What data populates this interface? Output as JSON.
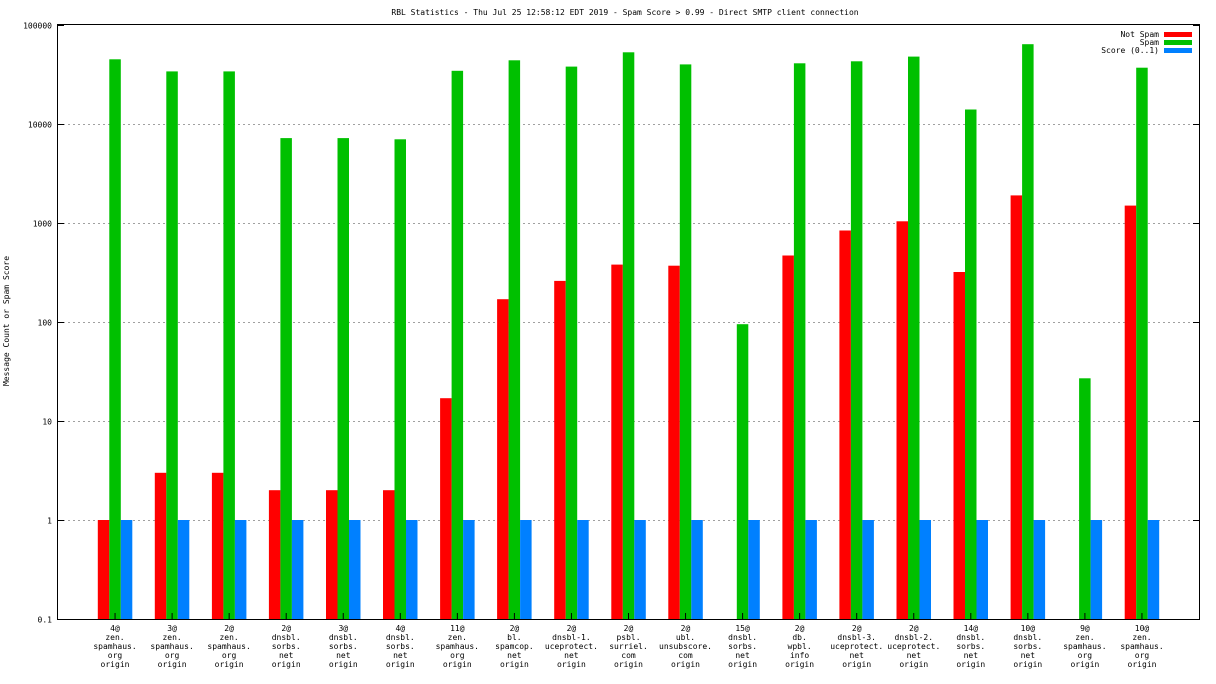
{
  "chart_data": {
    "type": "bar",
    "title": "RBL Statistics - Thu Jul 25 12:58:12 EDT 2019 - Spam Score > 0.99 - Direct SMTP client connection",
    "xlabel": "",
    "ylabel": "Message Count or Spam Score",
    "yscale": "log",
    "ylim": [
      0.1,
      100000
    ],
    "yticks": [
      "0.1",
      "1",
      "10",
      "100",
      "1000",
      "10000",
      "100000"
    ],
    "grid": true,
    "legend_position": "top-right",
    "categories": [
      [
        "4@",
        "zen.",
        "spamhaus.",
        "org",
        "origin"
      ],
      [
        "3@",
        "zen.",
        "spamhaus.",
        "org",
        "origin"
      ],
      [
        "2@",
        "zen.",
        "spamhaus.",
        "org",
        "origin"
      ],
      [
        "2@",
        "dnsbl.",
        "sorbs.",
        "net",
        "origin"
      ],
      [
        "3@",
        "dnsbl.",
        "sorbs.",
        "net",
        "origin"
      ],
      [
        "4@",
        "dnsbl.",
        "sorbs.",
        "net",
        "origin"
      ],
      [
        "11@",
        "zen.",
        "spamhaus.",
        "org",
        "origin"
      ],
      [
        "2@",
        "bl.",
        "spamcop.",
        "net",
        "origin"
      ],
      [
        "2@",
        "dnsbl-1.",
        "uceprotect.",
        "net",
        "origin"
      ],
      [
        "2@",
        "psbl.",
        "surriel.",
        "com",
        "origin"
      ],
      [
        "2@",
        "ubl.",
        "unsubscore.",
        "com",
        "origin"
      ],
      [
        "15@",
        "dnsbl.",
        "sorbs.",
        "net",
        "origin"
      ],
      [
        "2@",
        "db.",
        "wpbl.",
        "info",
        "origin"
      ],
      [
        "2@",
        "dnsbl-3.",
        "uceprotect.",
        "net",
        "origin"
      ],
      [
        "2@",
        "dnsbl-2.",
        "uceprotect.",
        "net",
        "origin"
      ],
      [
        "14@",
        "dnsbl.",
        "sorbs.",
        "net",
        "origin"
      ],
      [
        "10@",
        "dnsbl.",
        "sorbs.",
        "net",
        "origin"
      ],
      [
        "9@",
        "zen.",
        "spamhaus.",
        "org",
        "origin"
      ],
      [
        "10@",
        "zen.",
        "spamhaus.",
        "org",
        "origin"
      ]
    ],
    "series": [
      {
        "name": "Not Spam",
        "color": "#ff0000",
        "values": [
          1,
          3,
          3,
          2,
          2,
          2,
          17,
          170,
          260,
          380,
          370,
          null,
          470,
          840,
          1040,
          320,
          1900,
          null,
          1500
        ]
      },
      {
        "name": "Spam",
        "color": "#00c000",
        "values": [
          45000,
          34000,
          34000,
          7200,
          7200,
          7000,
          34500,
          44000,
          38000,
          53000,
          40000,
          95,
          41000,
          43000,
          48000,
          14000,
          64000,
          27,
          37000
        ]
      },
      {
        "name": "Score (0..1)",
        "color": "#0080ff",
        "values": [
          1,
          1,
          1,
          1,
          1,
          1,
          1,
          1,
          1,
          1,
          1,
          1,
          1,
          1,
          1,
          1,
          1,
          1,
          1
        ]
      }
    ]
  }
}
